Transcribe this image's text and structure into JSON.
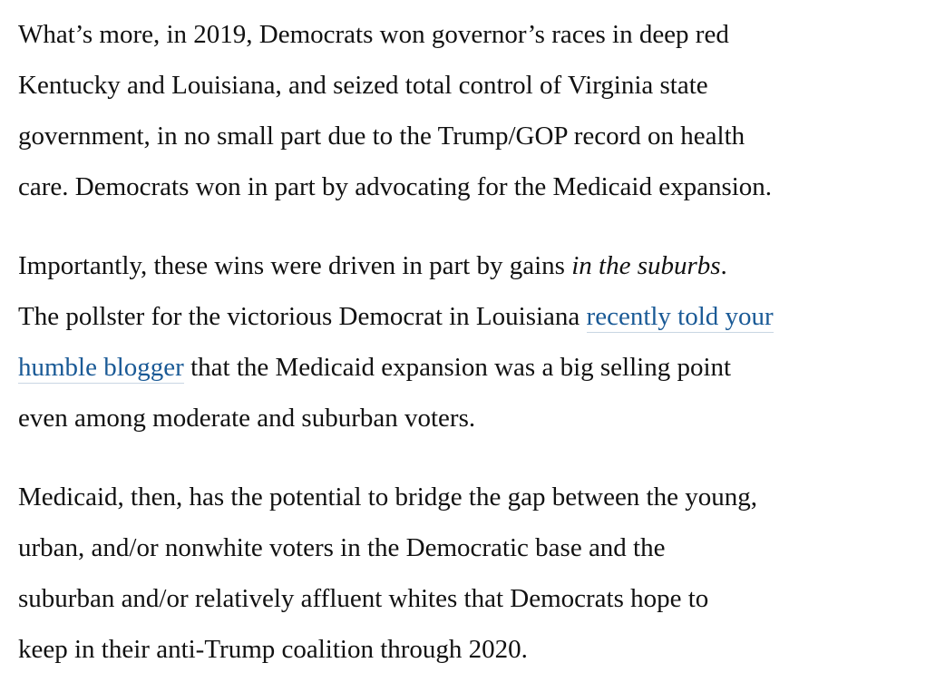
{
  "article": {
    "p1": {
      "l1": "What’s more, in 2019, Democrats won governor’s races in deep red",
      "l2": "Kentucky and Louisiana, and seized total control of Virginia state",
      "l3": "government, in no small part due to the Trump/GOP record on health",
      "l4": "care. Democrats won in part by advocating for the Medicaid expansion."
    },
    "p2": {
      "l1_pre": "Importantly, these wins were driven in part by gains ",
      "l1_em": "in the suburbs",
      "l1_post": ".",
      "l2_pre": "The pollster for the victorious Democrat in Louisiana ",
      "link_part1": "recently told your",
      "link_part2": "humble blogger",
      "l3_post": " that the Medicaid expansion was a big selling point",
      "l4": "even among moderate and suburban voters."
    },
    "p3": {
      "l1": "Medicaid, then, has the potential to bridge the gap between the young,",
      "l2": "urban, and/or nonwhite voters in the Democratic base and the",
      "l3": "suburban and/or relatively affluent whites that Democrats hope to",
      "l4": "keep in their anti-Trump coalition through 2020."
    },
    "link_color": "#1a5a96",
    "text_color": "#111111"
  }
}
